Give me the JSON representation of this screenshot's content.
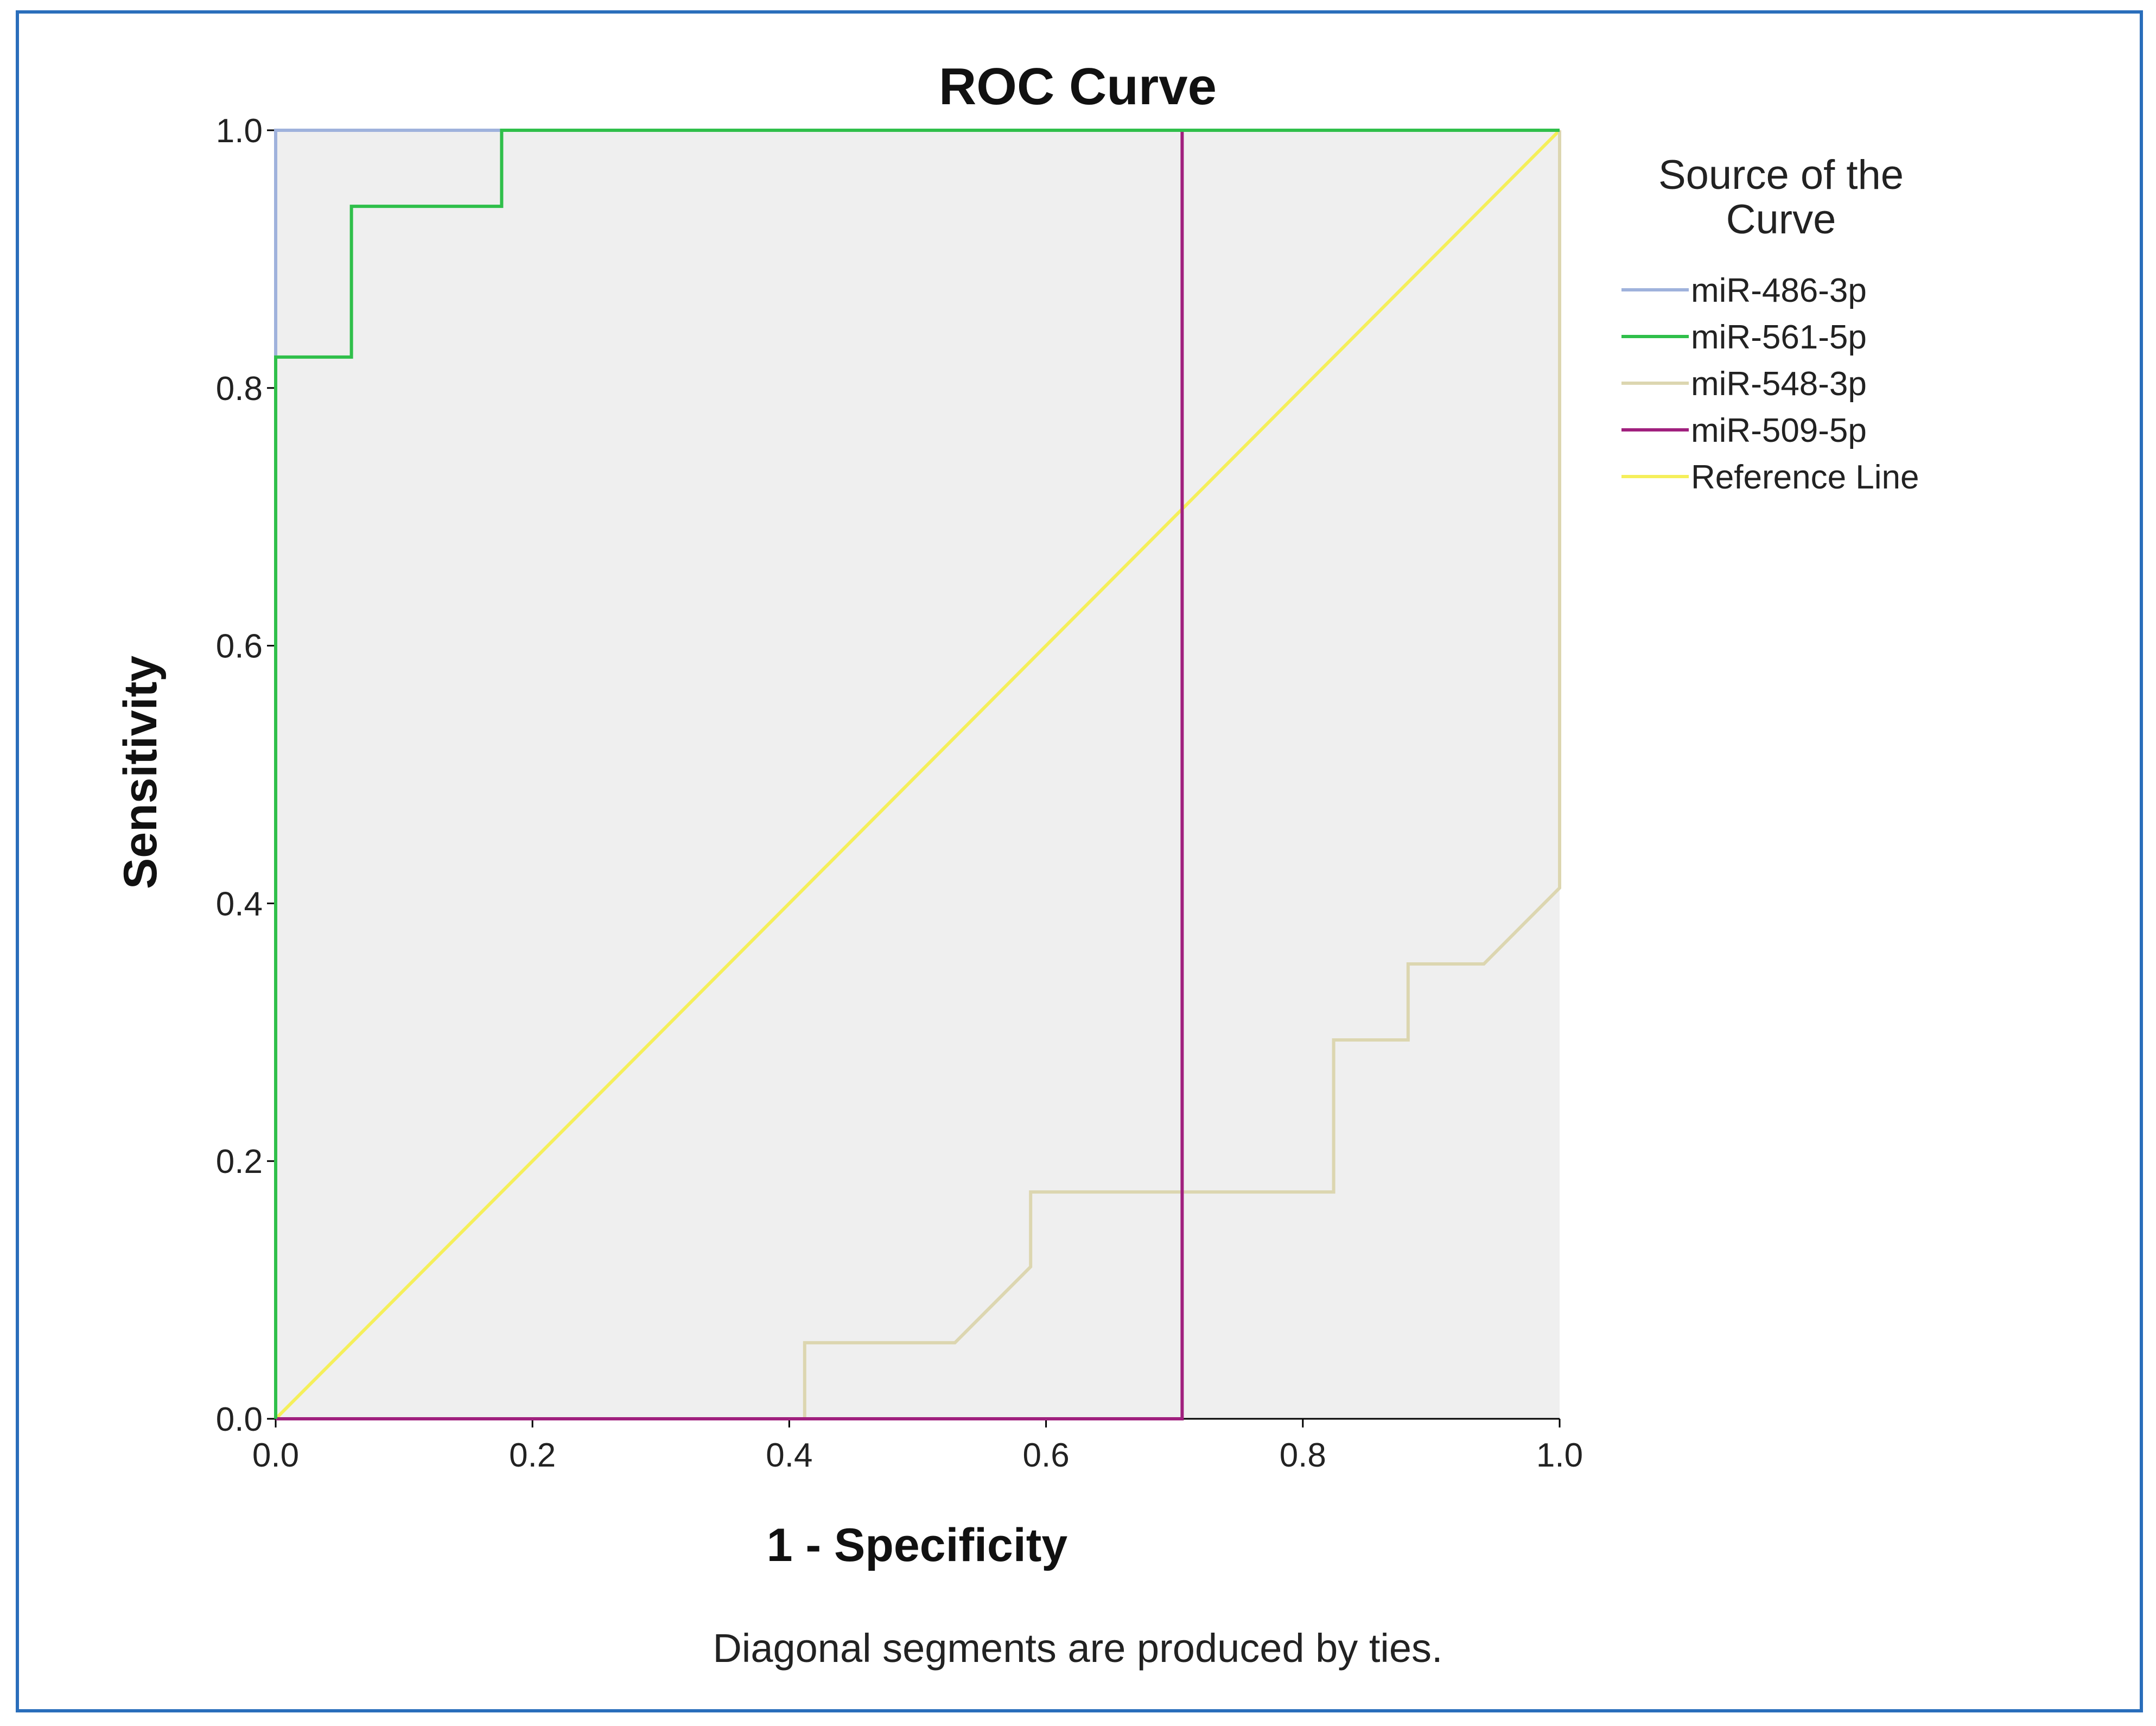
{
  "chart_data": {
    "type": "line",
    "title": "ROC Curve",
    "xlabel": "1 - Specificity",
    "ylabel": "Sensitivity",
    "xlim": [
      0,
      1
    ],
    "ylim": [
      0,
      1
    ],
    "x_ticks": [
      "0.0",
      "0.2",
      "0.4",
      "0.6",
      "0.8",
      "1.0"
    ],
    "y_ticks": [
      "0.0",
      "0.2",
      "0.4",
      "0.6",
      "0.8",
      "1.0"
    ],
    "grid": false,
    "legend_title": "Source of the Curve",
    "legend_title_lines": [
      "Source of the",
      "Curve"
    ],
    "legend_position": "right",
    "footnote": "Diagonal segments are produced by ties.",
    "series": [
      {
        "name": "miR-486-3p",
        "color": "#9fb2dc",
        "x": [
          0,
          0,
          1
        ],
        "y": [
          0,
          1,
          1
        ]
      },
      {
        "name": "miR-561-5p",
        "color": "#2fbf4a",
        "x": [
          0,
          0,
          0.059,
          0.059,
          0.176,
          0.176,
          1
        ],
        "y": [
          0,
          0.824,
          0.824,
          0.941,
          0.941,
          1,
          1
        ]
      },
      {
        "name": "miR-548-3p",
        "color": "#dcd6b0",
        "x": [
          0,
          0.412,
          0.412,
          0.529,
          0.588,
          0.588,
          0.824,
          0.824,
          0.882,
          0.882,
          0.941,
          1,
          1
        ],
        "y": [
          0,
          0,
          0.059,
          0.059,
          0.118,
          0.176,
          0.176,
          0.294,
          0.294,
          0.353,
          0.353,
          0.412,
          1
        ]
      },
      {
        "name": "miR-509-5p",
        "color": "#a0207e",
        "x": [
          0,
          0.706,
          0.706,
          1
        ],
        "y": [
          0,
          0,
          1,
          1
        ]
      },
      {
        "name": "Reference Line",
        "color": "#f5ef5a",
        "x": [
          0,
          1
        ],
        "y": [
          0,
          1
        ]
      }
    ]
  }
}
